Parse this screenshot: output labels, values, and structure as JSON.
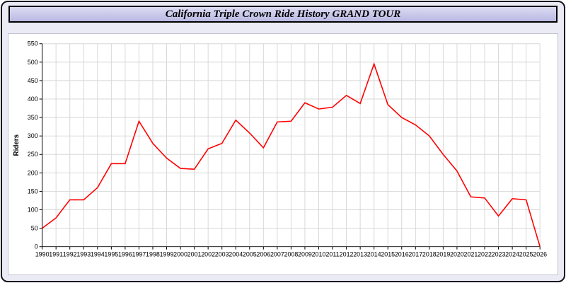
{
  "window": {
    "title": "California Triple Crown Ride History GRAND TOUR"
  },
  "colors": {
    "frame_border": "#15151f",
    "page_bg": "#ebebf6",
    "title_bar_bg": "#c9c8ea",
    "panel_bg": "#ffffff",
    "grid": "#d8d8d8",
    "axis": "#000000",
    "line": "#ff0000"
  },
  "chart_data": {
    "type": "line",
    "title": "California Triple Crown Ride History GRAND TOUR",
    "xlabel": "",
    "ylabel": "Riders",
    "ylim": [
      0,
      550
    ],
    "ytick_step": 50,
    "grid": true,
    "legend": false,
    "x": [
      1990,
      1991,
      1992,
      1993,
      1994,
      1995,
      1996,
      1997,
      1998,
      1999,
      2000,
      2001,
      2002,
      2003,
      2004,
      2005,
      2006,
      2007,
      2008,
      2009,
      2010,
      2011,
      2012,
      2013,
      2014,
      2015,
      2016,
      2017,
      2018,
      2019,
      2020,
      2021,
      2022,
      2023,
      2024,
      2025,
      2026
    ],
    "series": [
      {
        "name": "Riders",
        "color": "#ff0000",
        "values": [
          50,
          78,
          127,
          127,
          160,
          225,
          225,
          340,
          280,
          240,
          212,
          210,
          265,
          280,
          343,
          308,
          268,
          338,
          340,
          390,
          373,
          378,
          410,
          388,
          495,
          385,
          350,
          330,
          300,
          250,
          205,
          135,
          132,
          83,
          130,
          127,
          0
        ]
      }
    ]
  }
}
